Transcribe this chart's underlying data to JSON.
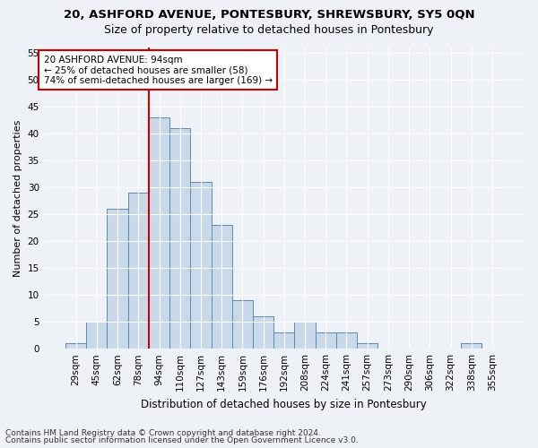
{
  "title1": "20, ASHFORD AVENUE, PONTESBURY, SHREWSBURY, SY5 0QN",
  "title2": "Size of property relative to detached houses in Pontesbury",
  "xlabel": "Distribution of detached houses by size in Pontesbury",
  "ylabel": "Number of detached properties",
  "bar_labels": [
    "29sqm",
    "45sqm",
    "62sqm",
    "78sqm",
    "94sqm",
    "110sqm",
    "127sqm",
    "143sqm",
    "159sqm",
    "176sqm",
    "192sqm",
    "208sqm",
    "224sqm",
    "241sqm",
    "257sqm",
    "273sqm",
    "290sqm",
    "306sqm",
    "322sqm",
    "338sqm",
    "355sqm"
  ],
  "bar_values": [
    1,
    5,
    26,
    29,
    43,
    41,
    31,
    23,
    9,
    6,
    3,
    5,
    3,
    3,
    1,
    0,
    0,
    0,
    0,
    1,
    0
  ],
  "bar_color": "#c9d9ea",
  "bar_edgecolor": "#5a8ab5",
  "vline_color": "#cc0000",
  "vline_bar_index": 4,
  "annotation_text": "20 ASHFORD AVENUE: 94sqm\n← 25% of detached houses are smaller (58)\n74% of semi-detached houses are larger (169) →",
  "annotation_box_facecolor": "#ffffff",
  "annotation_box_edgecolor": "#cc0000",
  "ylim": [
    0,
    56
  ],
  "yticks": [
    0,
    5,
    10,
    15,
    20,
    25,
    30,
    35,
    40,
    45,
    50,
    55
  ],
  "footnote1": "Contains HM Land Registry data © Crown copyright and database right 2024.",
  "footnote2": "Contains public sector information licensed under the Open Government Licence v3.0.",
  "bg_color": "#eef2f7",
  "plot_bg_color": "#eef2f7",
  "grid_color": "#ffffff",
  "title1_fontsize": 9.5,
  "title2_fontsize": 9,
  "xlabel_fontsize": 8.5,
  "ylabel_fontsize": 8,
  "tick_fontsize": 7.5,
  "footnote_fontsize": 6.5,
  "annotation_fontsize": 7.5
}
